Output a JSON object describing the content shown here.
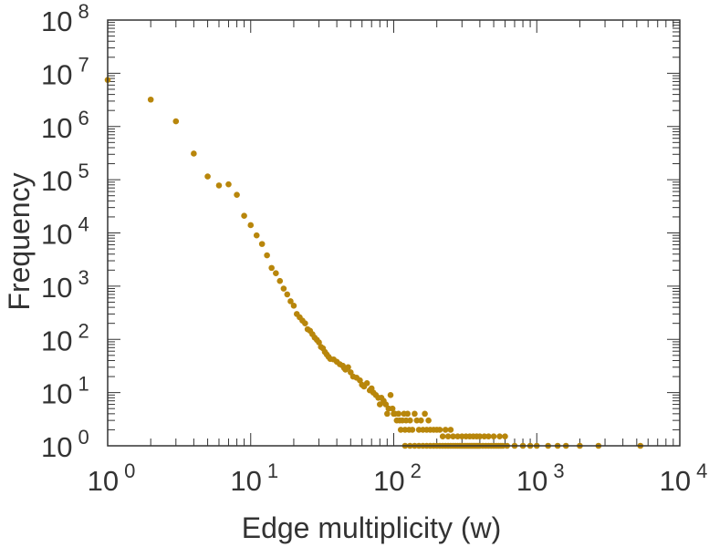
{
  "chart_data": {
    "type": "scatter",
    "x_scale": "log",
    "y_scale": "log",
    "xlim": [
      1,
      10000
    ],
    "ylim": [
      1,
      100000000
    ],
    "xlabel": "Edge multiplicity (w)",
    "ylabel": "Frequency",
    "grid": false,
    "marker_color": "#b8860b",
    "x_tick_labels": [
      {
        "base": "10",
        "exp": "0"
      },
      {
        "base": "10",
        "exp": "1"
      },
      {
        "base": "10",
        "exp": "2"
      },
      {
        "base": "10",
        "exp": "3"
      },
      {
        "base": "10",
        "exp": "4"
      }
    ],
    "y_tick_labels": [
      {
        "base": "10",
        "exp": "0"
      },
      {
        "base": "10",
        "exp": "1"
      },
      {
        "base": "10",
        "exp": "2"
      },
      {
        "base": "10",
        "exp": "3"
      },
      {
        "base": "10",
        "exp": "4"
      },
      {
        "base": "10",
        "exp": "5"
      },
      {
        "base": "10",
        "exp": "6"
      },
      {
        "base": "10",
        "exp": "7"
      },
      {
        "base": "10",
        "exp": "8"
      }
    ],
    "points": [
      [
        1,
        7500000
      ],
      [
        2,
        3200000
      ],
      [
        3,
        1250000
      ],
      [
        4,
        310000
      ],
      [
        5,
        115000
      ],
      [
        6,
        78000
      ],
      [
        7,
        82000
      ],
      [
        8,
        52000
      ],
      [
        9,
        21000
      ],
      [
        10,
        14000
      ],
      [
        11,
        9000
      ],
      [
        12,
        6200
      ],
      [
        13,
        3800
      ],
      [
        14,
        2200
      ],
      [
        15,
        1750
      ],
      [
        16,
        1250
      ],
      [
        17,
        900
      ],
      [
        18,
        700
      ],
      [
        19,
        520
      ],
      [
        20,
        430
      ],
      [
        21,
        300
      ],
      [
        22,
        260
      ],
      [
        23,
        225
      ],
      [
        24,
        200
      ],
      [
        25,
        155
      ],
      [
        26,
        145
      ],
      [
        27,
        125
      ],
      [
        28,
        108
      ],
      [
        29,
        98
      ],
      [
        30,
        88
      ],
      [
        31,
        72
      ],
      [
        32,
        68
      ],
      [
        33,
        58
      ],
      [
        34,
        52
      ],
      [
        35,
        47
      ],
      [
        36,
        43
      ],
      [
        38,
        42
      ],
      [
        40,
        38
      ],
      [
        42,
        34
      ],
      [
        44,
        32
      ],
      [
        45,
        29
      ],
      [
        46,
        27
      ],
      [
        48,
        30
      ],
      [
        50,
        24
      ],
      [
        52,
        20
      ],
      [
        55,
        19
      ],
      [
        58,
        17
      ],
      [
        60,
        14
      ],
      [
        62,
        13
      ],
      [
        65,
        15
      ],
      [
        68,
        11
      ],
      [
        70,
        12
      ],
      [
        72,
        10
      ],
      [
        75,
        9
      ],
      [
        78,
        8
      ],
      [
        80,
        6
      ],
      [
        82,
        8
      ],
      [
        85,
        7
      ],
      [
        88,
        6
      ],
      [
        90,
        4
      ],
      [
        92,
        5
      ],
      [
        95,
        9
      ],
      [
        98,
        5
      ],
      [
        100,
        4
      ],
      [
        102,
        4
      ],
      [
        105,
        3
      ],
      [
        108,
        4
      ],
      [
        110,
        3
      ],
      [
        112,
        2
      ],
      [
        115,
        3
      ],
      [
        118,
        4
      ],
      [
        120,
        2
      ],
      [
        122,
        3
      ],
      [
        125,
        4
      ],
      [
        128,
        2
      ],
      [
        130,
        3
      ],
      [
        135,
        2
      ],
      [
        140,
        4
      ],
      [
        145,
        3
      ],
      [
        150,
        2
      ],
      [
        155,
        3
      ],
      [
        160,
        2
      ],
      [
        165,
        4
      ],
      [
        170,
        2
      ],
      [
        175,
        3
      ],
      [
        180,
        2
      ],
      [
        190,
        2
      ],
      [
        200,
        2
      ],
      [
        210,
        2
      ],
      [
        220,
        1.5
      ],
      [
        230,
        2
      ],
      [
        240,
        1.5
      ],
      [
        250,
        2
      ],
      [
        260,
        1.5
      ],
      [
        280,
        1.5
      ],
      [
        300,
        1.5
      ],
      [
        320,
        1.5
      ],
      [
        340,
        1.5
      ],
      [
        360,
        1.5
      ],
      [
        380,
        1.5
      ],
      [
        400,
        1.5
      ],
      [
        430,
        1.5
      ],
      [
        460,
        1.5
      ],
      [
        500,
        1.5
      ],
      [
        550,
        1.5
      ],
      [
        600,
        1.5
      ],
      [
        120,
        1
      ],
      [
        130,
        1
      ],
      [
        140,
        1
      ],
      [
        150,
        1
      ],
      [
        160,
        1
      ],
      [
        170,
        1
      ],
      [
        180,
        1
      ],
      [
        190,
        1
      ],
      [
        200,
        1
      ],
      [
        210,
        1
      ],
      [
        220,
        1
      ],
      [
        230,
        1
      ],
      [
        240,
        1
      ],
      [
        250,
        1
      ],
      [
        260,
        1
      ],
      [
        270,
        1
      ],
      [
        280,
        1
      ],
      [
        290,
        1
      ],
      [
        300,
        1
      ],
      [
        310,
        1
      ],
      [
        320,
        1
      ],
      [
        330,
        1
      ],
      [
        340,
        1
      ],
      [
        350,
        1
      ],
      [
        360,
        1
      ],
      [
        370,
        1
      ],
      [
        380,
        1
      ],
      [
        390,
        1
      ],
      [
        400,
        1
      ],
      [
        420,
        1
      ],
      [
        440,
        1
      ],
      [
        460,
        1
      ],
      [
        480,
        1
      ],
      [
        500,
        1
      ],
      [
        520,
        1
      ],
      [
        540,
        1
      ],
      [
        560,
        1
      ],
      [
        580,
        1
      ],
      [
        620,
        1
      ],
      [
        700,
        1
      ],
      [
        800,
        1
      ],
      [
        900,
        1
      ],
      [
        1000,
        1
      ],
      [
        1200,
        1
      ],
      [
        1400,
        1
      ],
      [
        1600,
        1
      ],
      [
        2000,
        1
      ],
      [
        2700,
        1
      ],
      [
        5300,
        1
      ]
    ]
  }
}
